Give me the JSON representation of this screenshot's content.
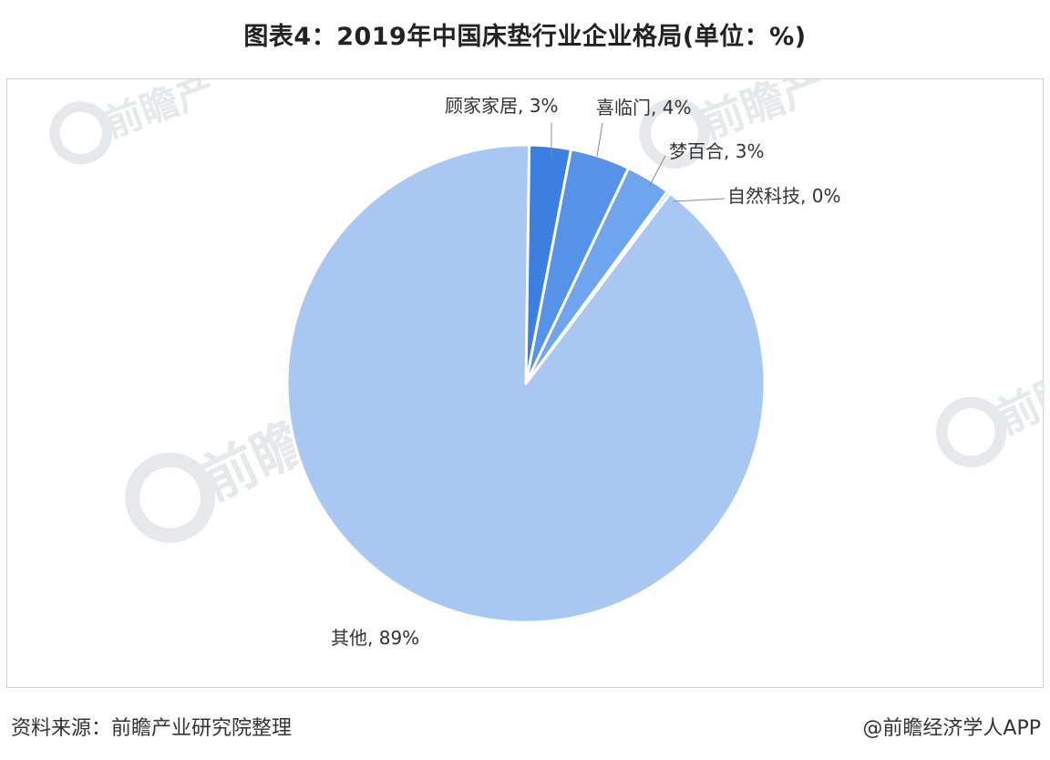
{
  "title": "图表4：2019年中国床垫行业企业格局(单位：%)",
  "footer": {
    "source": "资料来源：前瞻产业研究院整理",
    "brand": "@前瞻经济学人APP"
  },
  "watermark": {
    "text": "前瞻产业研究院",
    "short": "前瞻产",
    "color": "#e6e8ec"
  },
  "chart_data": {
    "type": "pie",
    "labels": [
      "顾家家居",
      "喜临门",
      "梦百合",
      "自然科技",
      "其他"
    ],
    "values": [
      3,
      4,
      3,
      0,
      89
    ],
    "label_texts": [
      "顾家家居, 3%",
      "喜临门, 4%",
      "梦百合, 3%",
      "自然科技, 0%",
      "其他, 89%"
    ],
    "colors": [
      "#3b7fe0",
      "#5592e8",
      "#6fa5ee",
      "#8db8f2",
      "#a8c8f3"
    ]
  }
}
